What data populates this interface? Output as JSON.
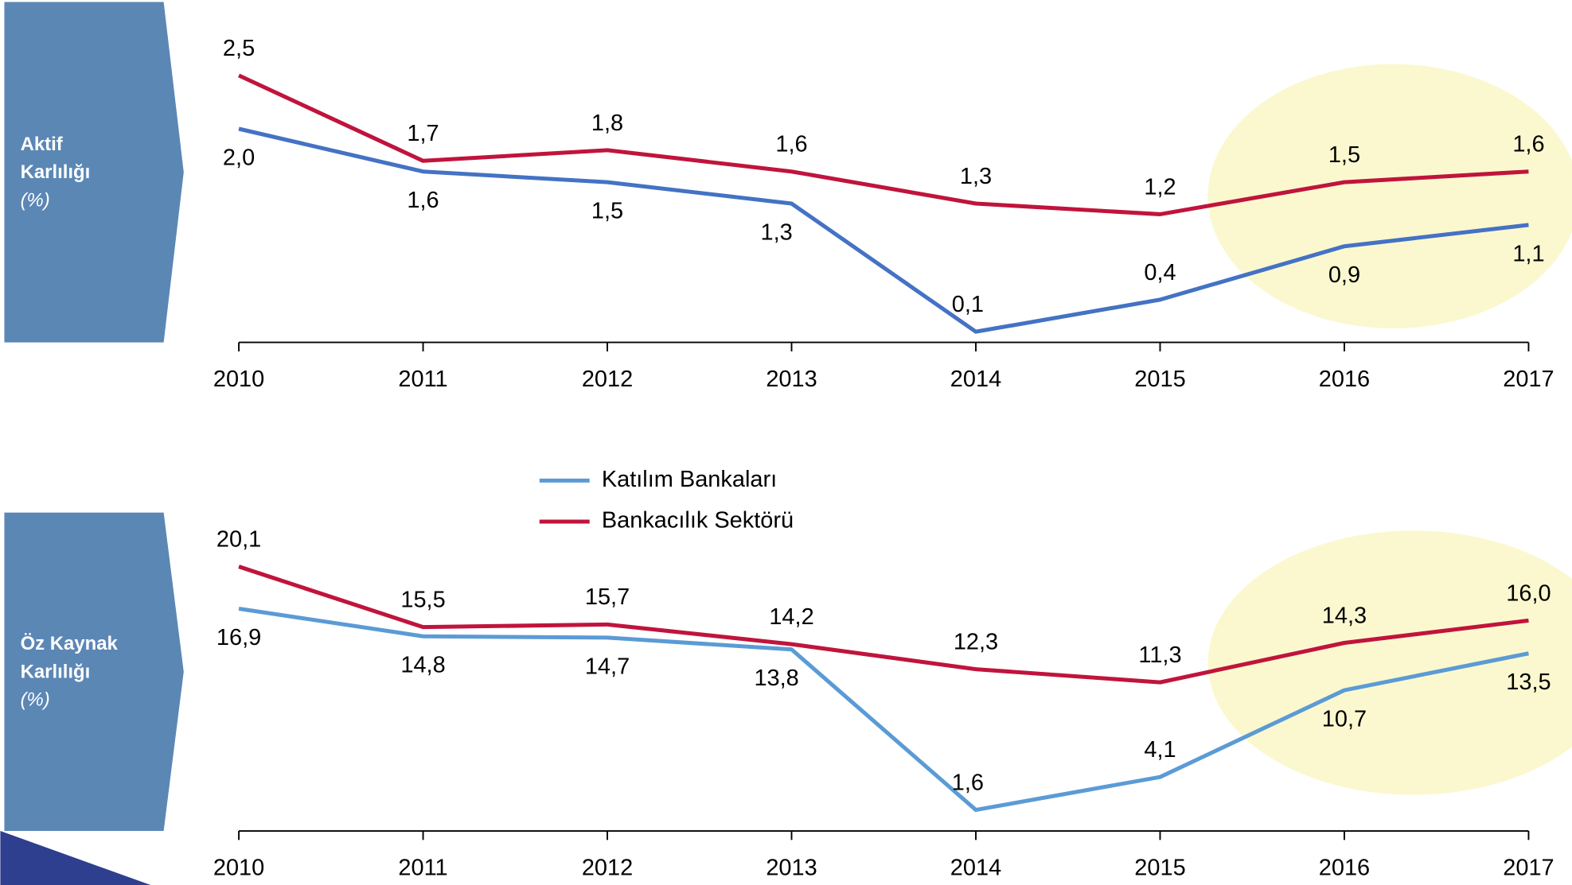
{
  "chart_data": [
    {
      "type": "line",
      "title": [
        "Aktif",
        "Karlılığı"
      ],
      "unit": "(%)",
      "categories": [
        "2010",
        "2011",
        "2012",
        "2013",
        "2014",
        "2015",
        "2016",
        "2017"
      ],
      "ylim": [
        0,
        3
      ],
      "series": [
        {
          "color": "#4472c4",
          "values": [
            2.0,
            1.6,
            1.5,
            1.3,
            0.1,
            0.4,
            0.9,
            1.1
          ],
          "value_labels": [
            "2,0",
            "1,6",
            "1,5",
            "1,3",
            "0,1",
            "0,4",
            "0,9",
            "1,1"
          ]
        },
        {
          "color": "#c0143c",
          "values": [
            2.5,
            1.7,
            1.8,
            1.6,
            1.3,
            1.2,
            1.5,
            1.6
          ],
          "value_labels": [
            "2,5",
            "1,7",
            "1,8",
            "1,6",
            "1,3",
            "1,2",
            "1,5",
            "1,6"
          ]
        }
      ]
    },
    {
      "type": "line",
      "title": [
        "Öz Kaynak",
        "Karlılığı"
      ],
      "unit": "(%)",
      "categories": [
        "2010",
        "2011",
        "2012",
        "2013",
        "2014",
        "2015",
        "2016",
        "2017"
      ],
      "ylim": [
        0,
        22
      ],
      "series": [
        {
          "name": "Katılım Bankaları",
          "color": "#5b9bd5",
          "values": [
            16.9,
            14.8,
            14.7,
            13.8,
            1.6,
            4.1,
            10.7,
            13.5
          ],
          "value_labels": [
            "16,9",
            "14,8",
            "14,7",
            "13,8",
            "1,6",
            "4,1",
            "10,7",
            "13,5"
          ]
        },
        {
          "name": "Bankacılık Sektörü",
          "color": "#c0143c",
          "values": [
            20.1,
            15.5,
            15.7,
            14.2,
            12.3,
            11.3,
            14.3,
            16.0
          ],
          "value_labels": [
            "20,1",
            "15,5",
            "15,7",
            "14,2",
            "12,3",
            "11,3",
            "14,3",
            "16,0"
          ]
        }
      ]
    }
  ]
}
